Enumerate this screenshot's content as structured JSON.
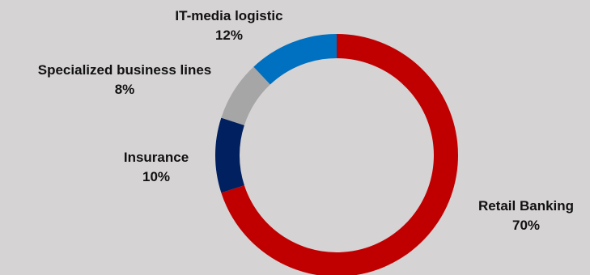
{
  "chart_data": {
    "type": "pie",
    "style": "donut",
    "start_angle_deg": 0,
    "direction": "clockwise",
    "slices": [
      {
        "label": "Retail Banking",
        "value": 70,
        "value_label": "70%",
        "color": "#c00000"
      },
      {
        "label": "Insurance",
        "value": 10,
        "value_label": "10%",
        "color": "#002060"
      },
      {
        "label": "Specialized business lines",
        "value": 8,
        "value_label": "8%",
        "color": "#a6a6a6"
      },
      {
        "label": "IT-media logistic",
        "value": 12,
        "value_label": "12%",
        "color": "#0070c0"
      }
    ],
    "title": "",
    "legend": "none",
    "background": "#d6d3d4"
  }
}
